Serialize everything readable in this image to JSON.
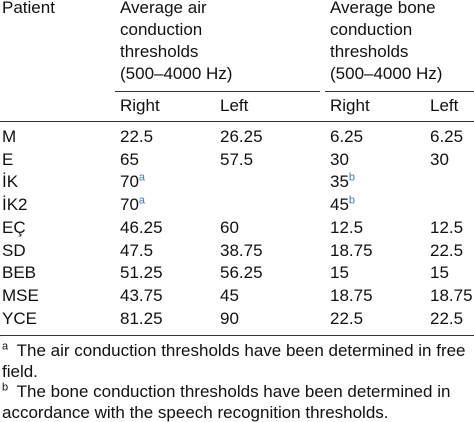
{
  "table": {
    "header": {
      "patient": "Patient",
      "groups": [
        {
          "lines": [
            "Average air",
            "conduction",
            "thresholds",
            "(500–4000 Hz)"
          ]
        },
        {
          "lines": [
            "Average bone",
            "conduction",
            "thresholds",
            "(500–4000 Hz)"
          ]
        }
      ],
      "sub": [
        "Right",
        "Left",
        "Right",
        "Left"
      ]
    },
    "rows": [
      [
        "M",
        "22.5",
        "26.25",
        "6.25",
        "6.25"
      ],
      [
        "E",
        "65",
        "57.5",
        "30",
        "30"
      ],
      [
        "İK",
        {
          "text": "70",
          "note": "a"
        },
        null,
        {
          "text": "35",
          "note": "b"
        },
        null
      ],
      [
        "İK2",
        {
          "text": "70",
          "note": "a"
        },
        null,
        {
          "text": "45",
          "note": "b"
        },
        null
      ],
      [
        "EÇ",
        "46.25",
        "60",
        "12.5",
        "12.5"
      ],
      [
        "SD",
        "47.5",
        "38.75",
        "18.75",
        "22.5"
      ],
      [
        "BEB",
        "51.25",
        "56.25",
        "15",
        "15"
      ],
      [
        "MSE",
        "43.75",
        "45",
        "18.75",
        "18.75"
      ],
      [
        "YCE",
        "81.25",
        "90",
        "22.5",
        "22.5"
      ]
    ],
    "footnotes": [
      {
        "mark": "a",
        "lines": [
          "The air conduction thresholds have been determined in free",
          "field."
        ]
      },
      {
        "mark": "b",
        "lines": [
          "The bone conduction thresholds have been determined in",
          "accordance with the speech recognition thresholds."
        ]
      }
    ]
  }
}
